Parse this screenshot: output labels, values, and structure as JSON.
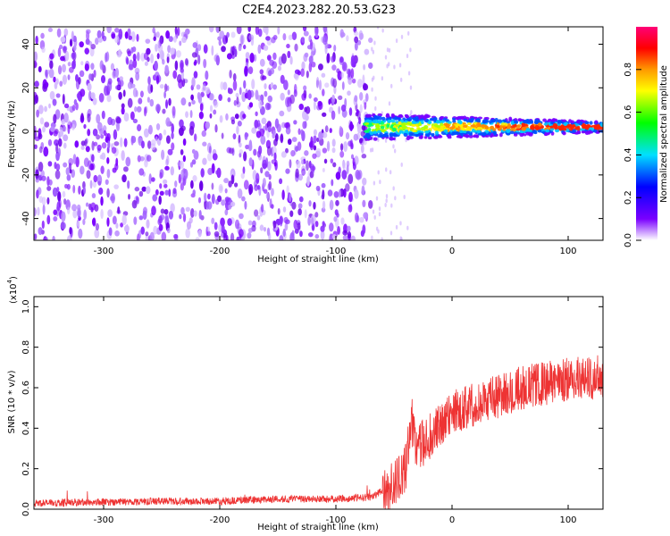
{
  "title": "C2E4.2023.282.20.53.G23",
  "chart_data": [
    {
      "type": "heatmap",
      "xlabel": "Height of straight line (km)",
      "ylabel": "Frequency (Hz)",
      "xlim": [
        -360,
        130
      ],
      "ylim": [
        -50,
        48
      ],
      "xticks": [
        -300,
        -200,
        -100,
        0,
        100
      ],
      "yticks": [
        -40,
        -20,
        0,
        20,
        40
      ],
      "colorbar": {
        "label": "Normalized spectral amplitude",
        "range": [
          0,
          1
        ],
        "ticks": [
          0.0,
          0.2,
          0.4,
          0.6,
          0.8
        ]
      },
      "features": {
        "broadband_noise_region_x": [
          -360,
          -70
        ],
        "signal_band_x": [
          -75,
          130
        ],
        "signal_band_frequency_hz": 2
      }
    },
    {
      "type": "line",
      "xlabel": "Height of straight line (km)",
      "ylabel": "SNR (10 * v/v)",
      "yscale_label": "(x10",
      "yscale_exp": "4",
      "xlim": [
        -360,
        130
      ],
      "ylim": [
        0,
        1.05
      ],
      "xticks": [
        -300,
        -200,
        -100,
        0,
        100
      ],
      "yticks": [
        0.0,
        0.2,
        0.4,
        0.6,
        0.8,
        1.0
      ],
      "series": [
        {
          "color": "#ee3333",
          "x": [
            -360,
            -300,
            -250,
            -200,
            -150,
            -100,
            -70,
            -50,
            -40,
            -35,
            -30,
            -20,
            -10,
            0,
            20,
            40,
            60,
            80,
            100,
            120,
            130
          ],
          "y": [
            0.03,
            0.035,
            0.04,
            0.04,
            0.05,
            0.05,
            0.06,
            0.12,
            0.2,
            0.45,
            0.3,
            0.35,
            0.4,
            0.48,
            0.52,
            0.56,
            0.6,
            0.62,
            0.64,
            0.65,
            0.66
          ]
        }
      ]
    }
  ]
}
